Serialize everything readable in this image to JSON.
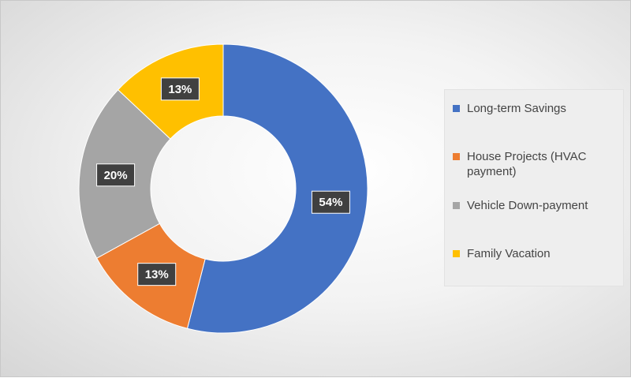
{
  "chart_data": {
    "type": "pie",
    "donut": true,
    "categories": [
      "Long-term Savings",
      "House Projects (HVAC payment)",
      "Vehicle Down-payment",
      "Family Vacation"
    ],
    "values": [
      54,
      13,
      20,
      13
    ],
    "data_labels": [
      "54%",
      "13%",
      "20%",
      "13%"
    ],
    "colors": [
      "#4472c4",
      "#ed7d31",
      "#a5a5a5",
      "#ffc000"
    ],
    "legend_position": "right",
    "legend": {
      "items": [
        {
          "label": "Long-term Savings",
          "color": "#4472c4"
        },
        {
          "label": "House Projects (HVAC payment)",
          "color": "#ed7d31"
        },
        {
          "label": "Vehicle Down-payment",
          "color": "#a5a5a5"
        },
        {
          "label": "Family Vacation",
          "color": "#ffc000"
        }
      ]
    }
  }
}
